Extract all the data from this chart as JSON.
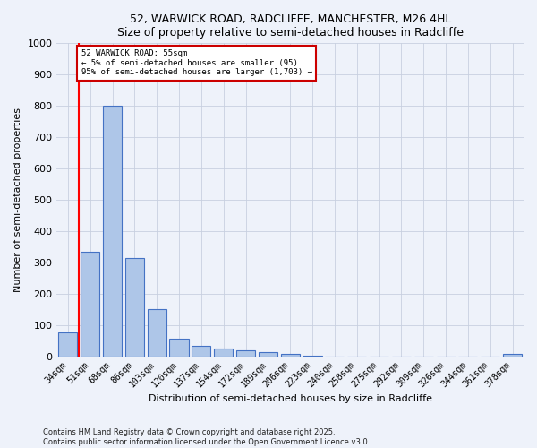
{
  "title": "52, WARWICK ROAD, RADCLIFFE, MANCHESTER, M26 4HL",
  "subtitle": "Size of property relative to semi-detached houses in Radcliffe",
  "xlabel": "Distribution of semi-detached houses by size in Radcliffe",
  "ylabel": "Number of semi-detached properties",
  "categories": [
    "34sqm",
    "51sqm",
    "68sqm",
    "86sqm",
    "103sqm",
    "120sqm",
    "137sqm",
    "154sqm",
    "172sqm",
    "189sqm",
    "206sqm",
    "223sqm",
    "240sqm",
    "258sqm",
    "275sqm",
    "292sqm",
    "309sqm",
    "326sqm",
    "344sqm",
    "361sqm",
    "378sqm"
  ],
  "values": [
    75,
    335,
    800,
    315,
    150,
    57,
    33,
    25,
    20,
    14,
    8,
    2,
    0,
    0,
    0,
    0,
    0,
    0,
    0,
    0,
    8
  ],
  "bar_color": "#aec6e8",
  "bar_edge_color": "#4472c4",
  "red_line_x": 0.5,
  "annotation_title": "52 WARWICK ROAD: 55sqm",
  "annotation_line1": "← 5% of semi-detached houses are smaller (95)",
  "annotation_line2": "95% of semi-detached houses are larger (1,703) →",
  "annotation_box_color": "#ffffff",
  "annotation_box_edge": "#cc0000",
  "ylim": [
    0,
    1000
  ],
  "yticks": [
    0,
    100,
    200,
    300,
    400,
    500,
    600,
    700,
    800,
    900,
    1000
  ],
  "footer1": "Contains HM Land Registry data © Crown copyright and database right 2025.",
  "footer2": "Contains public sector information licensed under the Open Government Licence v3.0.",
  "bg_color": "#eef2fa",
  "grid_color": "#c8d0e0"
}
